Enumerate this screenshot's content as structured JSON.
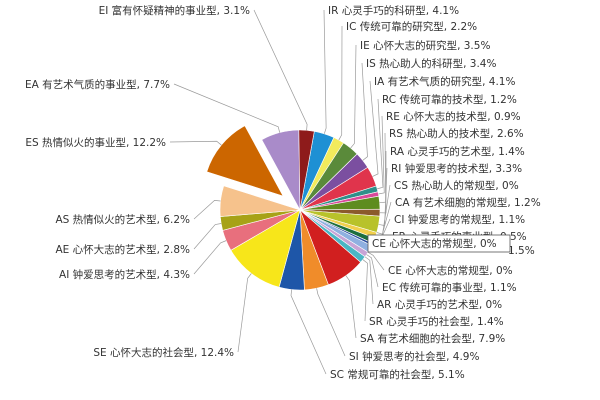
{
  "chart_data": {
    "type": "pie",
    "title": "",
    "unit": "%",
    "hover_tooltip": "CE 心怀大志的常规型, 0%",
    "slices": [
      {
        "label": "IR 心灵手巧的科研型, 4.1%",
        "value": 4.1,
        "color": "#1E90D4"
      },
      {
        "label": "IC 传统可靠的研究型, 2.2%",
        "value": 2.2,
        "color": "#F2EB5C"
      },
      {
        "label": "IE 心怀大志的研究型, 3.5%",
        "value": 3.5,
        "color": "#5A8A3A"
      },
      {
        "label": "IS 热心助人的科研型, 3.4%",
        "value": 3.4,
        "color": "#7B4FA0"
      },
      {
        "label": "IA 有艺术气质的研究型, 4.1%",
        "value": 4.1,
        "color": "#E0344C"
      },
      {
        "label": "RC 传统可靠的技术型, 1.2%",
        "value": 1.2,
        "color": "#2E8F8A"
      },
      {
        "label": "RE 心怀大志的技术型, 0.9%",
        "value": 0.9,
        "color": "#D9499A"
      },
      {
        "label": "RS 热心助人的技术型, 2.6%",
        "value": 2.6,
        "color": "#5E8C1F"
      },
      {
        "label": "RA 心灵手巧的艺术型, 1.4%",
        "value": 1.4,
        "color": "#8B5A2B"
      },
      {
        "label": "RI 钟爱思考的技术型, 3.3%",
        "value": 3.3,
        "color": "#B8C22A"
      },
      {
        "label": "CS 热心助人的常规型, 0%",
        "value": 0.0,
        "color": "#999999"
      },
      {
        "label": "CA 有艺术细胞的常规型, 1.2%",
        "value": 1.2,
        "color": "#F1CF4C"
      },
      {
        "label": "CI 钟爱思考的常规型, 1.1%",
        "value": 1.1,
        "color": "#1D6E3E"
      },
      {
        "label": "ER 心灵手巧的事业型, 0.5%",
        "value": 0.5,
        "color": "#2B4F9E"
      },
      {
        "label": "1.5%",
        "value": 1.5,
        "color": "#8FB0E0"
      },
      {
        "label": "CE 心怀大志的常规型, 0%",
        "value": 0.0,
        "color": "#777777"
      },
      {
        "label": "EC 传统可靠的事业型, 1.1%",
        "value": 1.1,
        "color": "#C7A4D6"
      },
      {
        "label": "AR 心灵手巧的艺术型, 0%",
        "value": 0.0,
        "color": "#BBBBBB"
      },
      {
        "label": "SR 心灵手巧的社会型, 1.4%",
        "value": 1.4,
        "color": "#4BB6C4"
      },
      {
        "label": "SA 有艺术细胞的社会型, 7.9%",
        "value": 7.9,
        "color": "#D11F1F"
      },
      {
        "label": "SI 钟爱思考的社会型, 4.9%",
        "value": 4.9,
        "color": "#F08C2A"
      },
      {
        "label": "SC 常规可靠的社会型, 5.1%",
        "value": 5.1,
        "color": "#1E56A8"
      },
      {
        "label": "SE 心怀大志的社会型, 12.4%",
        "value": 12.4,
        "color": "#F7E61A"
      },
      {
        "label": "AI 钟爱思考的艺术型, 4.3%",
        "value": 4.3,
        "color": "#E86F7D"
      },
      {
        "label": "AE 心怀大志的艺术型, 2.8%",
        "value": 2.8,
        "color": "#A7A217"
      },
      {
        "label": "AS 热情似火的艺术型, 6.2%",
        "value": 6.2,
        "color": "#F6C28C"
      },
      {
        "label": "ES 热情似火的事业型, 12.2%",
        "value": 12.2,
        "color": "#CC6600",
        "exploded": true
      },
      {
        "label": "EA 有艺术气质的事业型, 7.7%",
        "value": 7.7,
        "color": "#A98BC9"
      },
      {
        "label": "EI 富有怀疑精神的事业型, 3.1%",
        "value": 3.1,
        "color": "#8E1B1B"
      }
    ]
  }
}
